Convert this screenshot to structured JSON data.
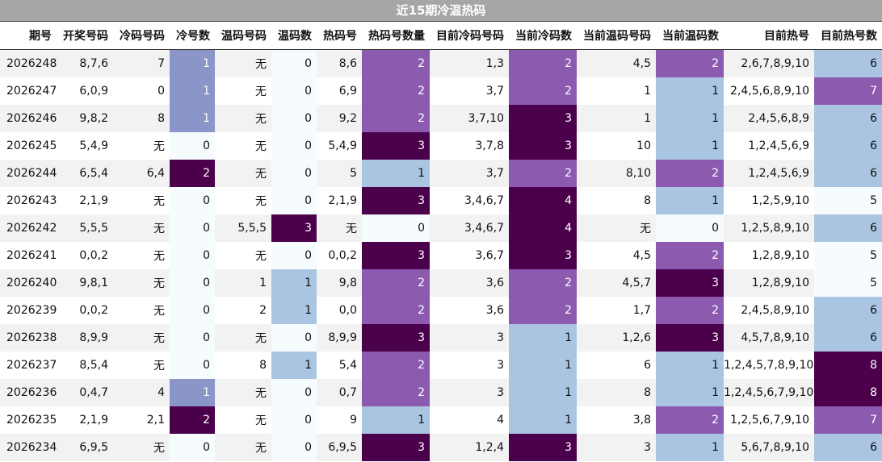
{
  "title": "近15期冷温热码",
  "headers": [
    "期号",
    "开奖号码",
    "冷码号码",
    "冷号数",
    "温码号码",
    "温码数",
    "热码号",
    "热码号数量",
    "目前冷码号码",
    "当前冷码数",
    "当前温码号码",
    "当前温码数",
    "目前热号",
    "目前热号数"
  ],
  "rows": [
    [
      "2026248",
      "8,7,6",
      "7",
      "1",
      "无",
      "0",
      "8,6",
      "2",
      "1,3",
      "2",
      "4,5",
      "2",
      "2,6,7,8,9,10",
      "6"
    ],
    [
      "2026247",
      "6,0,9",
      "0",
      "1",
      "无",
      "0",
      "6,9",
      "2",
      "3,7",
      "2",
      "1",
      "1",
      "2,4,5,6,8,9,10",
      "7"
    ],
    [
      "2026246",
      "9,8,2",
      "8",
      "1",
      "无",
      "0",
      "9,2",
      "2",
      "3,7,10",
      "3",
      "1",
      "1",
      "2,4,5,6,8,9",
      "6"
    ],
    [
      "2026245",
      "5,4,9",
      "无",
      "0",
      "无",
      "0",
      "5,4,9",
      "3",
      "3,7,8",
      "3",
      "10",
      "1",
      "1,2,4,5,6,9",
      "6"
    ],
    [
      "2026244",
      "6,5,4",
      "6,4",
      "2",
      "无",
      "0",
      "5",
      "1",
      "3,7",
      "2",
      "8,10",
      "2",
      "1,2,4,5,6,9",
      "6"
    ],
    [
      "2026243",
      "2,1,9",
      "无",
      "0",
      "无",
      "0",
      "2,1,9",
      "3",
      "3,4,6,7",
      "4",
      "8",
      "1",
      "1,2,5,9,10",
      "5"
    ],
    [
      "2026242",
      "5,5,5",
      "无",
      "0",
      "5,5,5",
      "3",
      "无",
      "0",
      "3,4,6,7",
      "4",
      "无",
      "0",
      "1,2,5,8,9,10",
      "6"
    ],
    [
      "2026241",
      "0,0,2",
      "无",
      "0",
      "无",
      "0",
      "0,0,2",
      "3",
      "3,6,7",
      "3",
      "4,5",
      "2",
      "1,2,8,9,10",
      "5"
    ],
    [
      "2026240",
      "9,8,1",
      "无",
      "0",
      "1",
      "1",
      "9,8",
      "2",
      "3,6",
      "2",
      "4,5,7",
      "3",
      "1,2,8,9,10",
      "5"
    ],
    [
      "2026239",
      "0,0,2",
      "无",
      "0",
      "2",
      "1",
      "0,0",
      "2",
      "3,6",
      "2",
      "1,7",
      "2",
      "2,4,5,8,9,10",
      "6"
    ],
    [
      "2026238",
      "8,9,9",
      "无",
      "0",
      "无",
      "0",
      "8,9,9",
      "3",
      "3",
      "1",
      "1,2,6",
      "3",
      "4,5,7,8,9,10",
      "6"
    ],
    [
      "2026237",
      "8,5,4",
      "无",
      "0",
      "8",
      "1",
      "5,4",
      "2",
      "3",
      "1",
      "6",
      "1",
      "1,2,4,5,7,8,9,10",
      "8"
    ],
    [
      "2026236",
      "0,4,7",
      "4",
      "1",
      "无",
      "0",
      "0,7",
      "2",
      "3",
      "1",
      "8",
      "1",
      "1,2,4,5,6,7,9,10",
      "8"
    ],
    [
      "2026235",
      "2,1,9",
      "2,1",
      "2",
      "无",
      "0",
      "9",
      "1",
      "4",
      "1",
      "3,8",
      "2",
      "1,2,5,6,7,9,10",
      "7"
    ],
    [
      "2026234",
      "6,9,5",
      "无",
      "0",
      "无",
      "0",
      "6,9,5",
      "3",
      "1,2,4",
      "3",
      "3",
      "1",
      "5,6,7,8,9,10",
      "6"
    ]
  ],
  "colors": {
    "title_bg": "#a6a6a6",
    "zero": "#f6fcfd",
    "light_blue": "#a9c5e1",
    "cold_one": "#8a95c8",
    "purple": "#8c5aaf",
    "dark_purple": "#4b004c"
  }
}
